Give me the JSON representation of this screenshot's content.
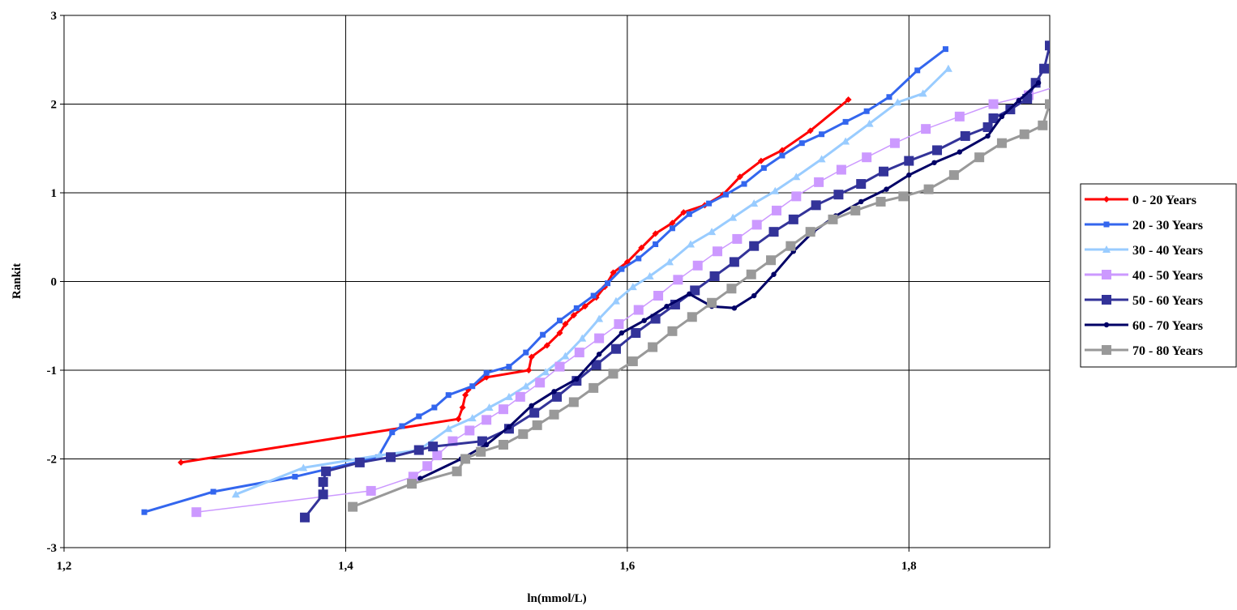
{
  "chart_data": {
    "type": "line",
    "title": "",
    "xlabel": "ln(mmol/L)",
    "ylabel": "Rankit",
    "xlim": [
      1.2,
      1.9
    ],
    "ylim": [
      -3,
      3
    ],
    "x_ticks": [
      1.2,
      1.4,
      1.6,
      1.8
    ],
    "x_tick_labels": [
      "1,2",
      "1,4",
      "1,6",
      "1,8"
    ],
    "y_ticks": [
      -3,
      -2,
      -1,
      0,
      1,
      2,
      3
    ],
    "y_tick_labels": [
      "-3",
      "-2",
      "-1",
      "0",
      "1",
      "2",
      "3"
    ],
    "grid": true,
    "legend_position": "right",
    "series": [
      {
        "name": "0 - 20 Years",
        "color": "#ff0000",
        "marker": "diamond",
        "points": [
          [
            1.283,
            -2.04
          ],
          [
            1.48,
            -1.55
          ],
          [
            1.483,
            -1.42
          ],
          [
            1.485,
            -1.28
          ],
          [
            1.487,
            -1.22
          ],
          [
            1.5,
            -1.08
          ],
          [
            1.53,
            -1.0
          ],
          [
            1.532,
            -0.85
          ],
          [
            1.543,
            -0.72
          ],
          [
            1.552,
            -0.58
          ],
          [
            1.556,
            -0.48
          ],
          [
            1.562,
            -0.38
          ],
          [
            1.57,
            -0.28
          ],
          [
            1.578,
            -0.18
          ],
          [
            1.584,
            -0.06
          ],
          [
            1.59,
            0.1
          ],
          [
            1.6,
            0.22
          ],
          [
            1.61,
            0.38
          ],
          [
            1.62,
            0.54
          ],
          [
            1.632,
            0.66
          ],
          [
            1.64,
            0.78
          ],
          [
            1.655,
            0.86
          ],
          [
            1.668,
            0.98
          ],
          [
            1.68,
            1.18
          ],
          [
            1.695,
            1.36
          ],
          [
            1.71,
            1.48
          ],
          [
            1.73,
            1.7
          ],
          [
            1.757,
            2.05
          ]
        ]
      },
      {
        "name": "20 - 30 Years",
        "color": "#3366ee",
        "marker": "square",
        "points": [
          [
            1.257,
            -2.6
          ],
          [
            1.306,
            -2.37
          ],
          [
            1.364,
            -2.2
          ],
          [
            1.423,
            -1.98
          ],
          [
            1.433,
            -1.7
          ],
          [
            1.44,
            -1.63
          ],
          [
            1.452,
            -1.52
          ],
          [
            1.463,
            -1.42
          ],
          [
            1.473,
            -1.28
          ],
          [
            1.49,
            -1.18
          ],
          [
            1.5,
            -1.03
          ],
          [
            1.516,
            -0.96
          ],
          [
            1.528,
            -0.8
          ],
          [
            1.54,
            -0.6
          ],
          [
            1.552,
            -0.44
          ],
          [
            1.564,
            -0.3
          ],
          [
            1.576,
            -0.16
          ],
          [
            1.586,
            -0.02
          ],
          [
            1.596,
            0.14
          ],
          [
            1.608,
            0.26
          ],
          [
            1.62,
            0.42
          ],
          [
            1.632,
            0.6
          ],
          [
            1.644,
            0.76
          ],
          [
            1.658,
            0.88
          ],
          [
            1.67,
            0.98
          ],
          [
            1.683,
            1.1
          ],
          [
            1.697,
            1.28
          ],
          [
            1.71,
            1.42
          ],
          [
            1.724,
            1.56
          ],
          [
            1.738,
            1.66
          ],
          [
            1.755,
            1.8
          ],
          [
            1.77,
            1.92
          ],
          [
            1.786,
            2.08
          ],
          [
            1.806,
            2.38
          ],
          [
            1.826,
            2.62
          ]
        ]
      },
      {
        "name": "30 - 40 Years",
        "color": "#99ccff",
        "marker": "triangle",
        "points": [
          [
            1.322,
            -2.4
          ],
          [
            1.37,
            -2.1
          ],
          [
            1.424,
            -1.96
          ],
          [
            1.452,
            -1.9
          ],
          [
            1.473,
            -1.66
          ],
          [
            1.49,
            -1.54
          ],
          [
            1.502,
            -1.42
          ],
          [
            1.516,
            -1.3
          ],
          [
            1.528,
            -1.18
          ],
          [
            1.542,
            -1.02
          ],
          [
            1.556,
            -0.84
          ],
          [
            1.568,
            -0.64
          ],
          [
            1.58,
            -0.42
          ],
          [
            1.592,
            -0.22
          ],
          [
            1.604,
            -0.06
          ],
          [
            1.616,
            0.06
          ],
          [
            1.63,
            0.22
          ],
          [
            1.645,
            0.42
          ],
          [
            1.66,
            0.56
          ],
          [
            1.675,
            0.72
          ],
          [
            1.69,
            0.88
          ],
          [
            1.705,
            1.02
          ],
          [
            1.72,
            1.18
          ],
          [
            1.738,
            1.38
          ],
          [
            1.755,
            1.58
          ],
          [
            1.772,
            1.78
          ],
          [
            1.792,
            2.02
          ],
          [
            1.81,
            2.12
          ],
          [
            1.828,
            2.4
          ]
        ]
      },
      {
        "name": "40 - 50 Years",
        "color": "#cc99ff",
        "marker": "square",
        "points": [
          [
            1.294,
            -2.6
          ],
          [
            1.418,
            -2.36
          ],
          [
            1.448,
            -2.2
          ],
          [
            1.458,
            -2.08
          ],
          [
            1.465,
            -1.96
          ],
          [
            1.476,
            -1.8
          ],
          [
            1.488,
            -1.68
          ],
          [
            1.5,
            -1.56
          ],
          [
            1.512,
            -1.44
          ],
          [
            1.524,
            -1.3
          ],
          [
            1.538,
            -1.14
          ],
          [
            1.552,
            -0.96
          ],
          [
            1.566,
            -0.8
          ],
          [
            1.58,
            -0.64
          ],
          [
            1.594,
            -0.48
          ],
          [
            1.608,
            -0.32
          ],
          [
            1.622,
            -0.16
          ],
          [
            1.636,
            0.02
          ],
          [
            1.65,
            0.18
          ],
          [
            1.664,
            0.34
          ],
          [
            1.678,
            0.48
          ],
          [
            1.692,
            0.64
          ],
          [
            1.706,
            0.8
          ],
          [
            1.72,
            0.96
          ],
          [
            1.736,
            1.12
          ],
          [
            1.752,
            1.26
          ],
          [
            1.77,
            1.4
          ],
          [
            1.79,
            1.56
          ],
          [
            1.812,
            1.72
          ],
          [
            1.836,
            1.86
          ],
          [
            1.86,
            2.0
          ],
          [
            1.885,
            2.1
          ],
          [
            1.905,
            2.2
          ]
        ]
      },
      {
        "name": "50 - 60 Years",
        "color": "#333399",
        "marker": "square",
        "points": [
          [
            1.371,
            -2.66
          ],
          [
            1.384,
            -2.4
          ],
          [
            1.384,
            -2.26
          ],
          [
            1.386,
            -2.14
          ],
          [
            1.41,
            -2.04
          ],
          [
            1.432,
            -1.98
          ],
          [
            1.452,
            -1.9
          ],
          [
            1.462,
            -1.86
          ],
          [
            1.497,
            -1.8
          ],
          [
            1.516,
            -1.66
          ],
          [
            1.534,
            -1.48
          ],
          [
            1.55,
            -1.3
          ],
          [
            1.564,
            -1.12
          ],
          [
            1.578,
            -0.94
          ],
          [
            1.592,
            -0.76
          ],
          [
            1.606,
            -0.58
          ],
          [
            1.62,
            -0.42
          ],
          [
            1.634,
            -0.26
          ],
          [
            1.648,
            -0.1
          ],
          [
            1.662,
            0.06
          ],
          [
            1.676,
            0.22
          ],
          [
            1.69,
            0.4
          ],
          [
            1.704,
            0.56
          ],
          [
            1.718,
            0.7
          ],
          [
            1.734,
            0.86
          ],
          [
            1.75,
            0.98
          ],
          [
            1.766,
            1.1
          ],
          [
            1.782,
            1.24
          ],
          [
            1.8,
            1.36
          ],
          [
            1.82,
            1.48
          ],
          [
            1.84,
            1.64
          ],
          [
            1.856,
            1.74
          ],
          [
            1.86,
            1.84
          ],
          [
            1.872,
            1.94
          ],
          [
            1.884,
            2.06
          ],
          [
            1.89,
            2.24
          ],
          [
            1.896,
            2.4
          ],
          [
            1.9,
            2.66
          ]
        ]
      },
      {
        "name": "60 - 70 Years",
        "color": "#000066",
        "marker": "circle",
        "points": [
          [
            1.453,
            -2.22
          ],
          [
            1.482,
            -2.0
          ],
          [
            1.5,
            -1.84
          ],
          [
            1.516,
            -1.64
          ],
          [
            1.532,
            -1.4
          ],
          [
            1.548,
            -1.24
          ],
          [
            1.564,
            -1.1
          ],
          [
            1.58,
            -0.82
          ],
          [
            1.596,
            -0.58
          ],
          [
            1.612,
            -0.44
          ],
          [
            1.628,
            -0.28
          ],
          [
            1.644,
            -0.14
          ],
          [
            1.66,
            -0.28
          ],
          [
            1.676,
            -0.3
          ],
          [
            1.69,
            -0.16
          ],
          [
            1.704,
            0.08
          ],
          [
            1.718,
            0.34
          ],
          [
            1.732,
            0.56
          ],
          [
            1.748,
            0.74
          ],
          [
            1.766,
            0.9
          ],
          [
            1.784,
            1.04
          ],
          [
            1.8,
            1.2
          ],
          [
            1.818,
            1.34
          ],
          [
            1.836,
            1.46
          ],
          [
            1.856,
            1.64
          ],
          [
            1.866,
            1.86
          ],
          [
            1.878,
            2.04
          ],
          [
            1.892,
            2.24
          ]
        ]
      },
      {
        "name": "70 - 80 Years",
        "color": "#999999",
        "marker": "square",
        "points": [
          [
            1.405,
            -2.54
          ],
          [
            1.447,
            -2.28
          ],
          [
            1.479,
            -2.14
          ],
          [
            1.485,
            -2.0
          ],
          [
            1.496,
            -1.92
          ],
          [
            1.512,
            -1.84
          ],
          [
            1.526,
            -1.72
          ],
          [
            1.536,
            -1.62
          ],
          [
            1.548,
            -1.5
          ],
          [
            1.562,
            -1.36
          ],
          [
            1.576,
            -1.2
          ],
          [
            1.59,
            -1.04
          ],
          [
            1.604,
            -0.9
          ],
          [
            1.618,
            -0.74
          ],
          [
            1.632,
            -0.56
          ],
          [
            1.646,
            -0.4
          ],
          [
            1.66,
            -0.24
          ],
          [
            1.674,
            -0.08
          ],
          [
            1.688,
            0.08
          ],
          [
            1.702,
            0.24
          ],
          [
            1.716,
            0.4
          ],
          [
            1.73,
            0.56
          ],
          [
            1.746,
            0.7
          ],
          [
            1.762,
            0.8
          ],
          [
            1.78,
            0.9
          ],
          [
            1.796,
            0.96
          ],
          [
            1.814,
            1.04
          ],
          [
            1.832,
            1.2
          ],
          [
            1.85,
            1.4
          ],
          [
            1.866,
            1.56
          ],
          [
            1.882,
            1.66
          ],
          [
            1.895,
            1.76
          ],
          [
            1.9,
            2.0
          ]
        ]
      }
    ]
  }
}
